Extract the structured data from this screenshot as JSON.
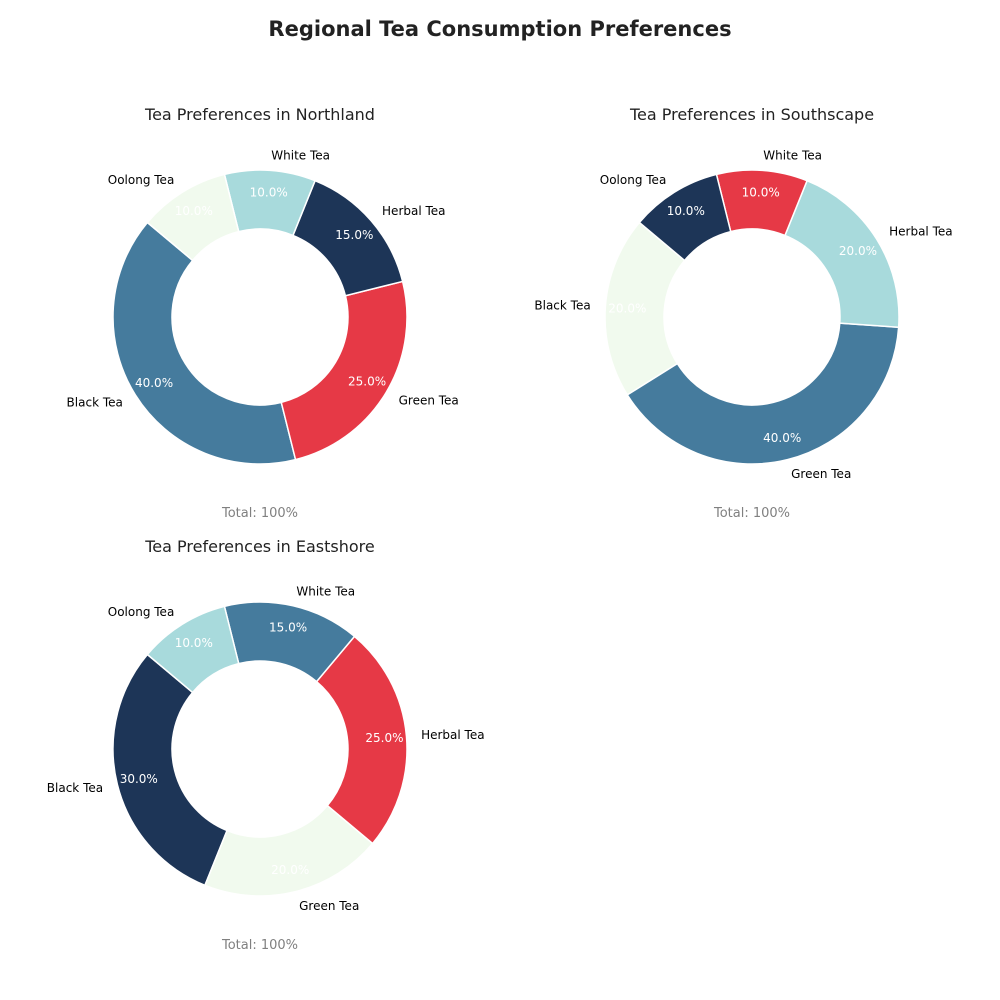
{
  "title": "Regional Tea Consumption Preferences",
  "colors": {
    "Black Tea": "#457b9d",
    "Green Tea": "#e63946",
    "Herbal Tea": "#1d3557",
    "White Tea": "#a8dadc",
    "Oolong Tea": "#f1faee"
  },
  "chart_data": [
    {
      "type": "pie",
      "title": "Tea Preferences in Northland",
      "total_label": "Total: 100%",
      "slices": [
        {
          "label": "Black Tea",
          "value": 40.0,
          "pct_label": "40.0%",
          "color": "#457b9d"
        },
        {
          "label": "Green Tea",
          "value": 25.0,
          "pct_label": "25.0%",
          "color": "#e63946"
        },
        {
          "label": "Herbal Tea",
          "value": 15.0,
          "pct_label": "15.0%",
          "color": "#1d3557"
        },
        {
          "label": "White Tea",
          "value": 10.0,
          "pct_label": "10.0%",
          "color": "#a8dadc"
        },
        {
          "label": "Oolong Tea",
          "value": 10.0,
          "pct_label": "10.0%",
          "color": "#f1faee"
        }
      ]
    },
    {
      "type": "pie",
      "title": "Tea Preferences in Southscape",
      "total_label": "Total: 100%",
      "slices": [
        {
          "label": "Black Tea",
          "value": 20.0,
          "pct_label": "20.0%",
          "color": "#f1faee"
        },
        {
          "label": "Green Tea",
          "value": 40.0,
          "pct_label": "40.0%",
          "color": "#457b9d"
        },
        {
          "label": "Herbal Tea",
          "value": 20.0,
          "pct_label": "20.0%",
          "color": "#a8dadc"
        },
        {
          "label": "White Tea",
          "value": 10.0,
          "pct_label": "10.0%",
          "color": "#e63946"
        },
        {
          "label": "Oolong Tea",
          "value": 10.0,
          "pct_label": "10.0%",
          "color": "#1d3557"
        }
      ]
    },
    {
      "type": "pie",
      "title": "Tea Preferences in Eastshore",
      "total_label": "Total: 100%",
      "slices": [
        {
          "label": "Black Tea",
          "value": 30.0,
          "pct_label": "30.0%",
          "color": "#1d3557"
        },
        {
          "label": "Green Tea",
          "value": 20.0,
          "pct_label": "20.0%",
          "color": "#f1faee"
        },
        {
          "label": "Herbal Tea",
          "value": 25.0,
          "pct_label": "25.0%",
          "color": "#e63946"
        },
        {
          "label": "White Tea",
          "value": 15.0,
          "pct_label": "15.0%",
          "color": "#457b9d"
        },
        {
          "label": "Oolong Tea",
          "value": 10.0,
          "pct_label": "10.0%",
          "color": "#a8dadc"
        }
      ]
    }
  ]
}
